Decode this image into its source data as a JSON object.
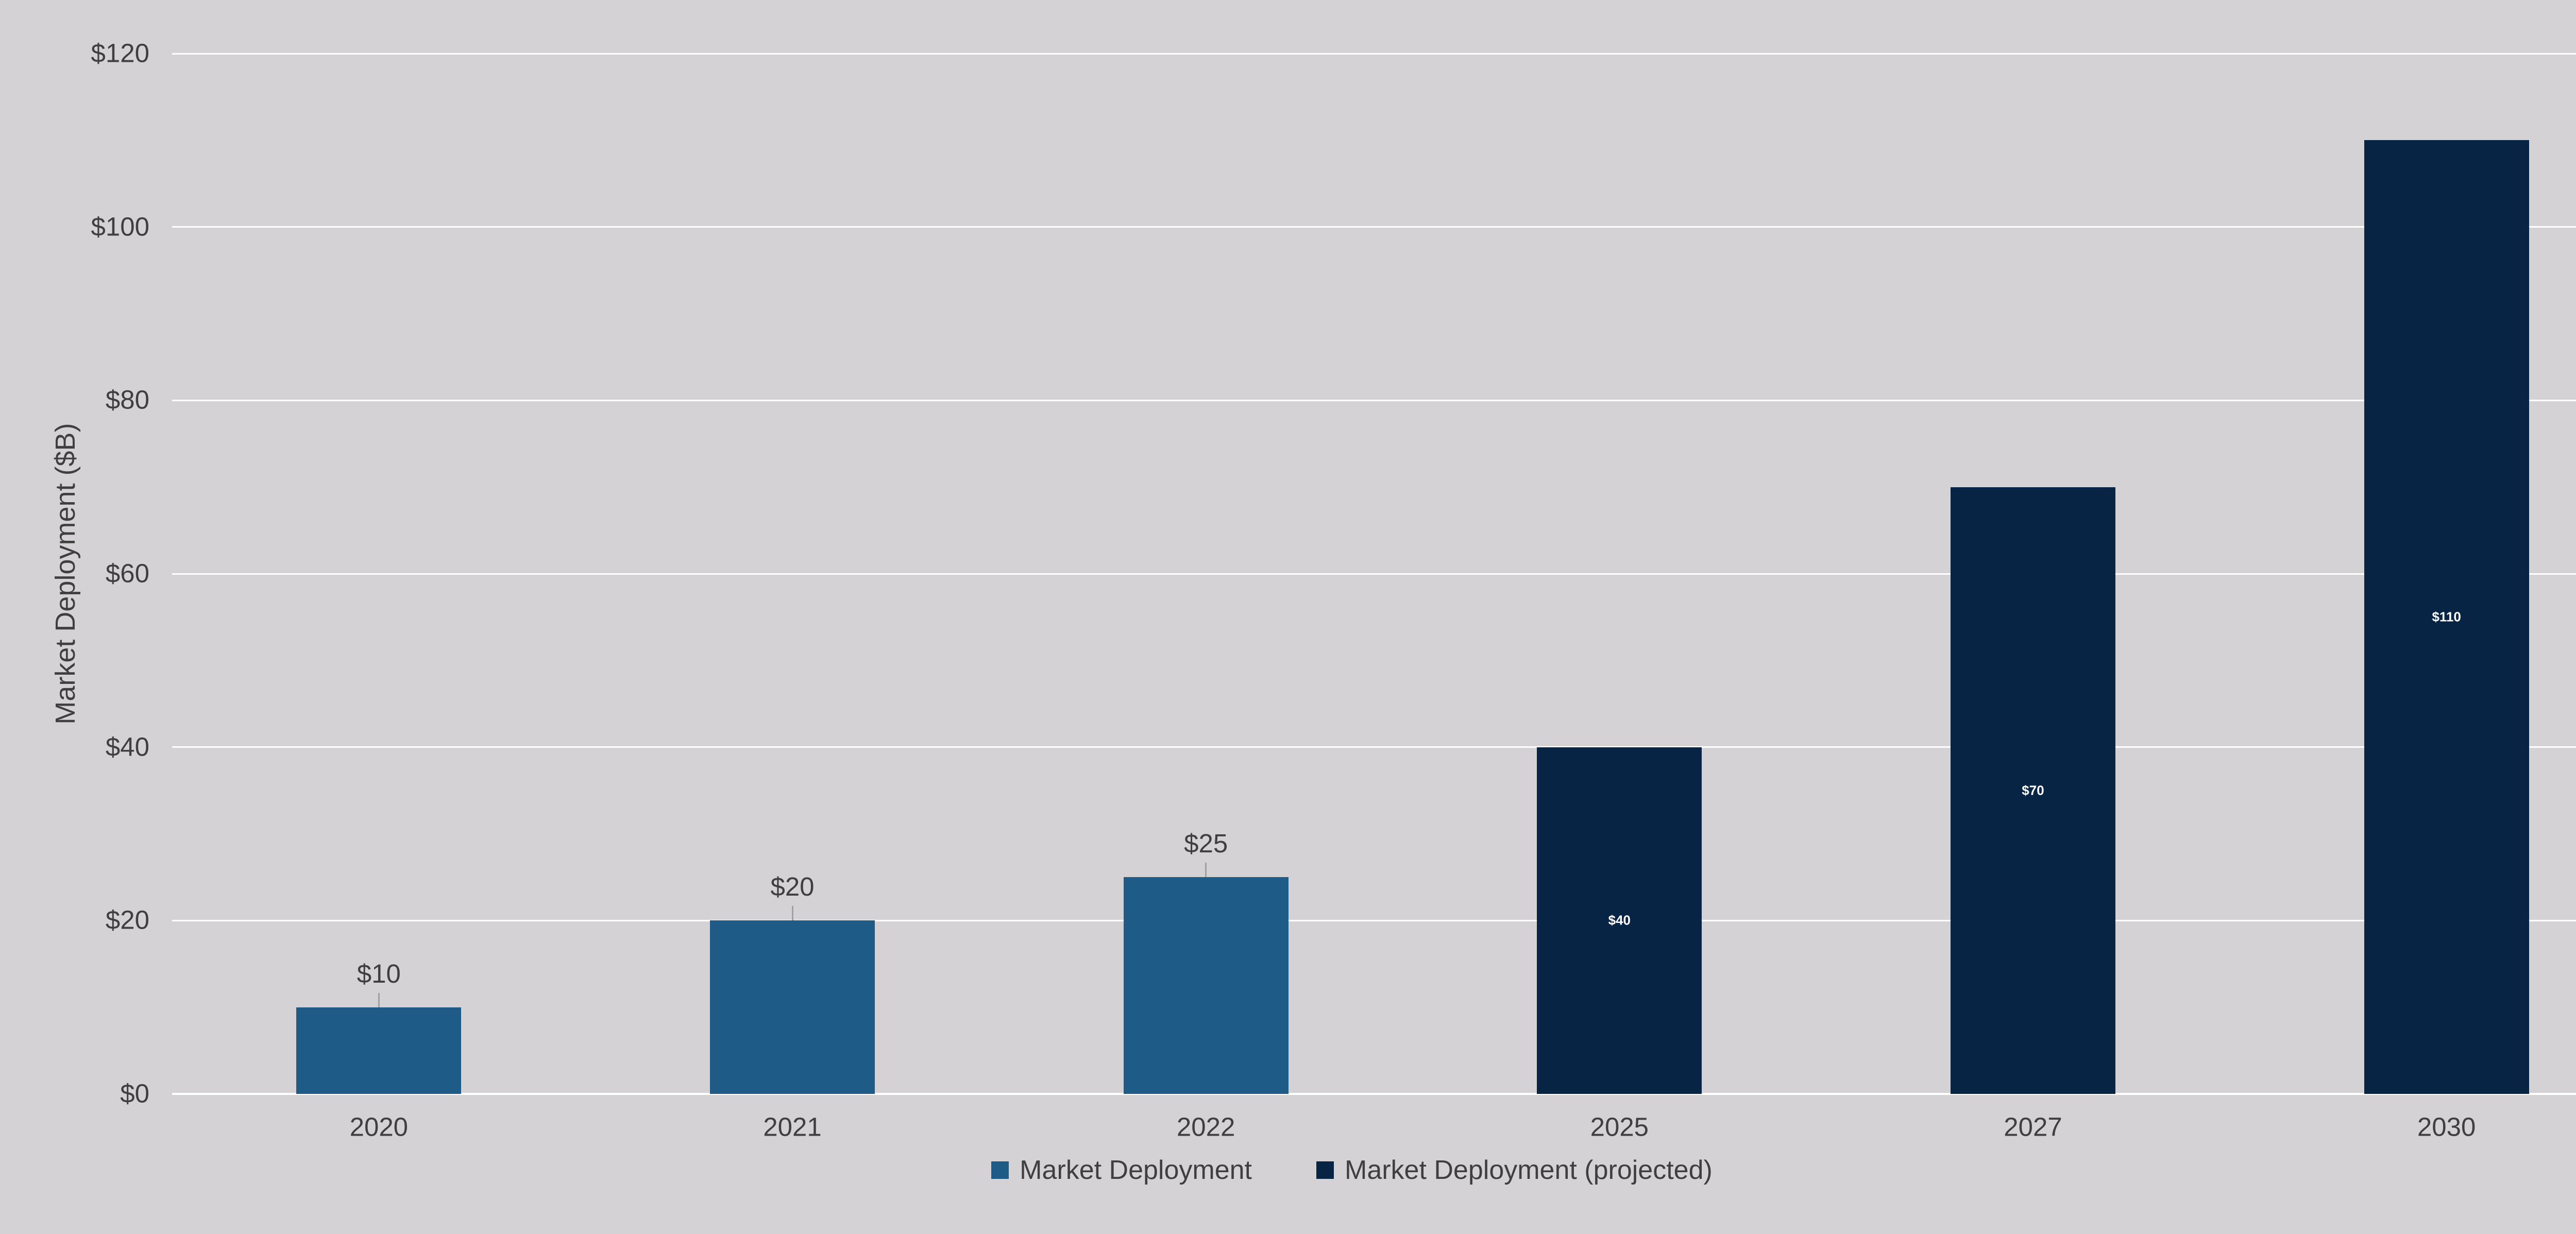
{
  "chart_data": {
    "type": "bar",
    "title": "",
    "xlabel": "",
    "ylabel": "Market Deployment ($B)",
    "ylim": [
      0,
      120
    ],
    "grid": true,
    "legend_position": "bottom",
    "background_color": "#d4d2d4",
    "gridline_color": "#ffffff",
    "text_color": "#3f3f3f",
    "categories": [
      "2020",
      "2021",
      "2022",
      "2025",
      "2027",
      "2030"
    ],
    "y_ticks": [
      {
        "value": 0,
        "label": "$0"
      },
      {
        "value": 20,
        "label": "$20"
      },
      {
        "value": 40,
        "label": "$40"
      },
      {
        "value": 60,
        "label": "$60"
      },
      {
        "value": 80,
        "label": "$80"
      },
      {
        "value": 100,
        "label": "$100"
      },
      {
        "value": 120,
        "label": "$120"
      }
    ],
    "series": [
      {
        "name": "Market Deployment",
        "color": "#1f5b87",
        "label_position": "outside",
        "values": [
          10,
          20,
          25,
          null,
          null,
          null
        ],
        "data_labels": [
          "$10",
          "$20",
          "$25",
          null,
          null,
          null
        ]
      },
      {
        "name": "Market Deployment (projected)",
        "color": "#082445",
        "label_position": "inside",
        "values": [
          null,
          null,
          null,
          40,
          70,
          110
        ],
        "data_labels": [
          null,
          null,
          null,
          "$40",
          "$70",
          "$110"
        ]
      }
    ]
  }
}
